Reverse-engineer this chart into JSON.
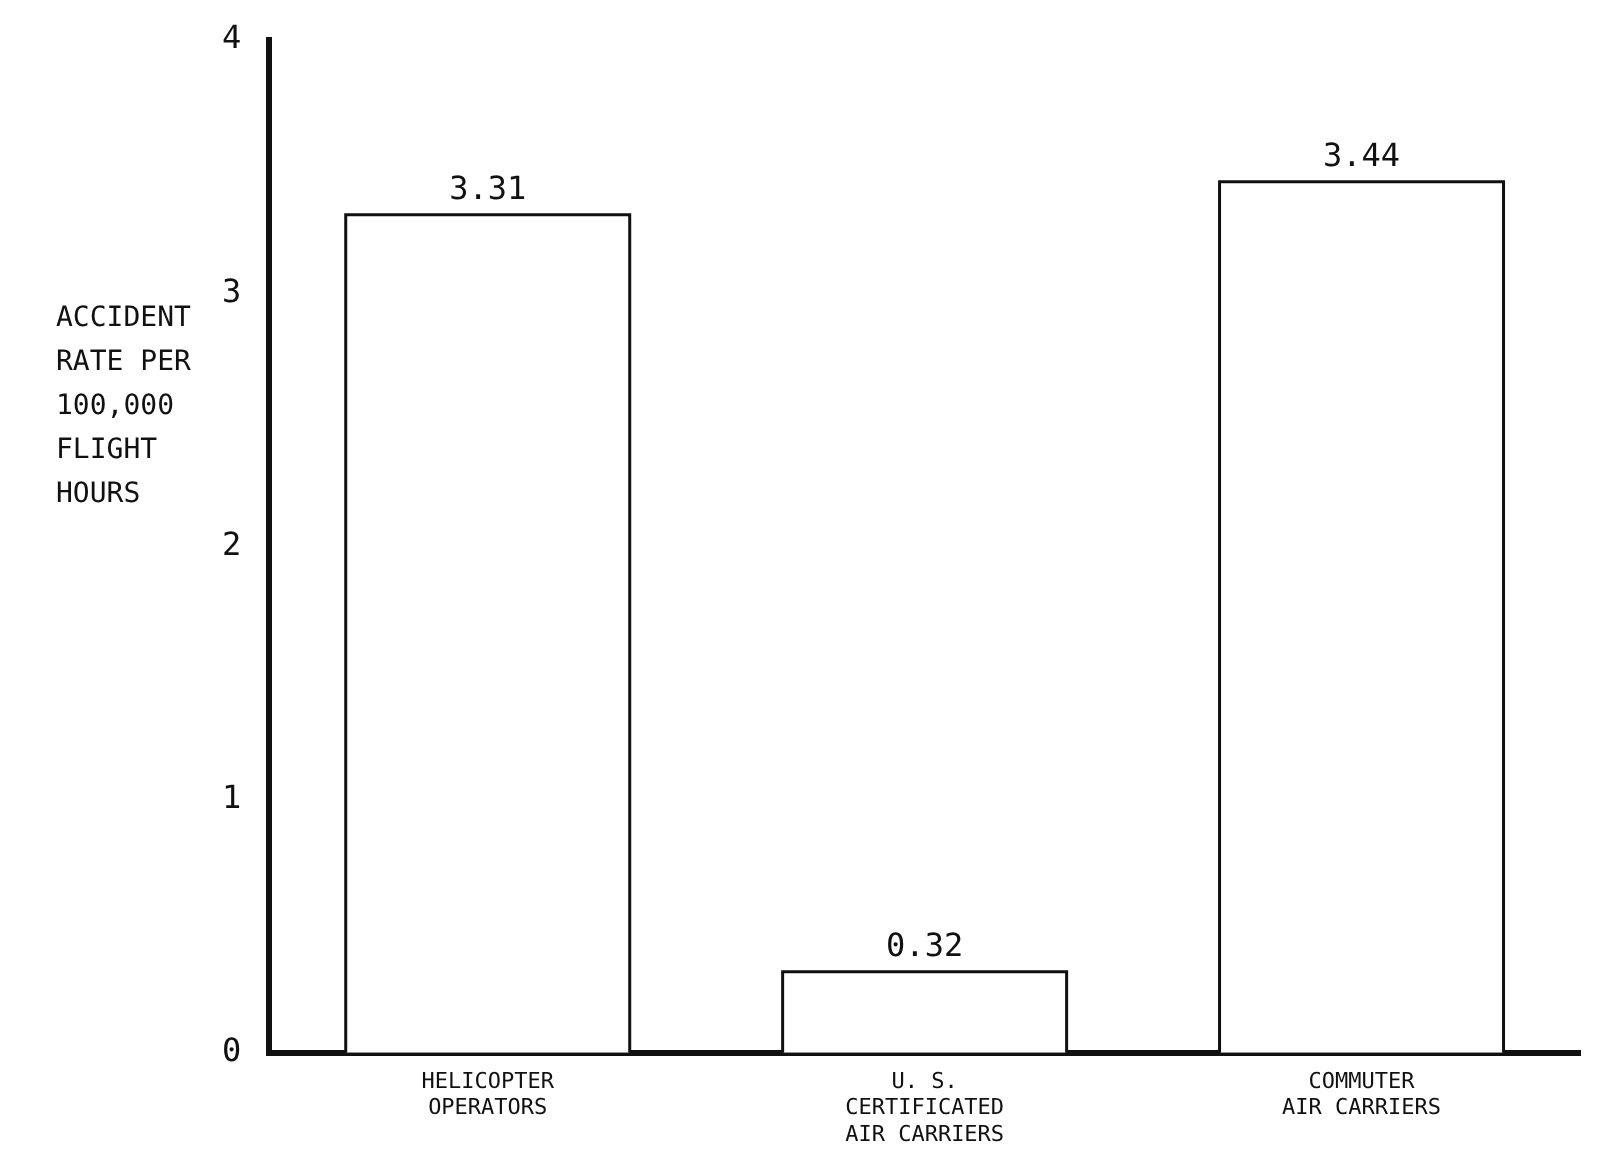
{
  "chart_data": {
    "type": "bar",
    "ylabel": "ACCIDENT\nRATE PER\n100,000\nFLIGHT\nHOURS",
    "categories": [
      "HELICOPTER\nOPERATORS",
      "U. S.\nCERTIFICATED\nAIR CARRIERS",
      "COMMUTER\nAIR CARRIERS"
    ],
    "values": [
      3.31,
      0.32,
      3.44
    ],
    "colors": [
      "#ffffff",
      "#ffffff",
      "#ffffff"
    ],
    "ylim": [
      0,
      4
    ],
    "yticks": [
      0,
      1,
      2,
      3,
      4
    ],
    "grid": false,
    "legend": false,
    "data_labels": true
  }
}
